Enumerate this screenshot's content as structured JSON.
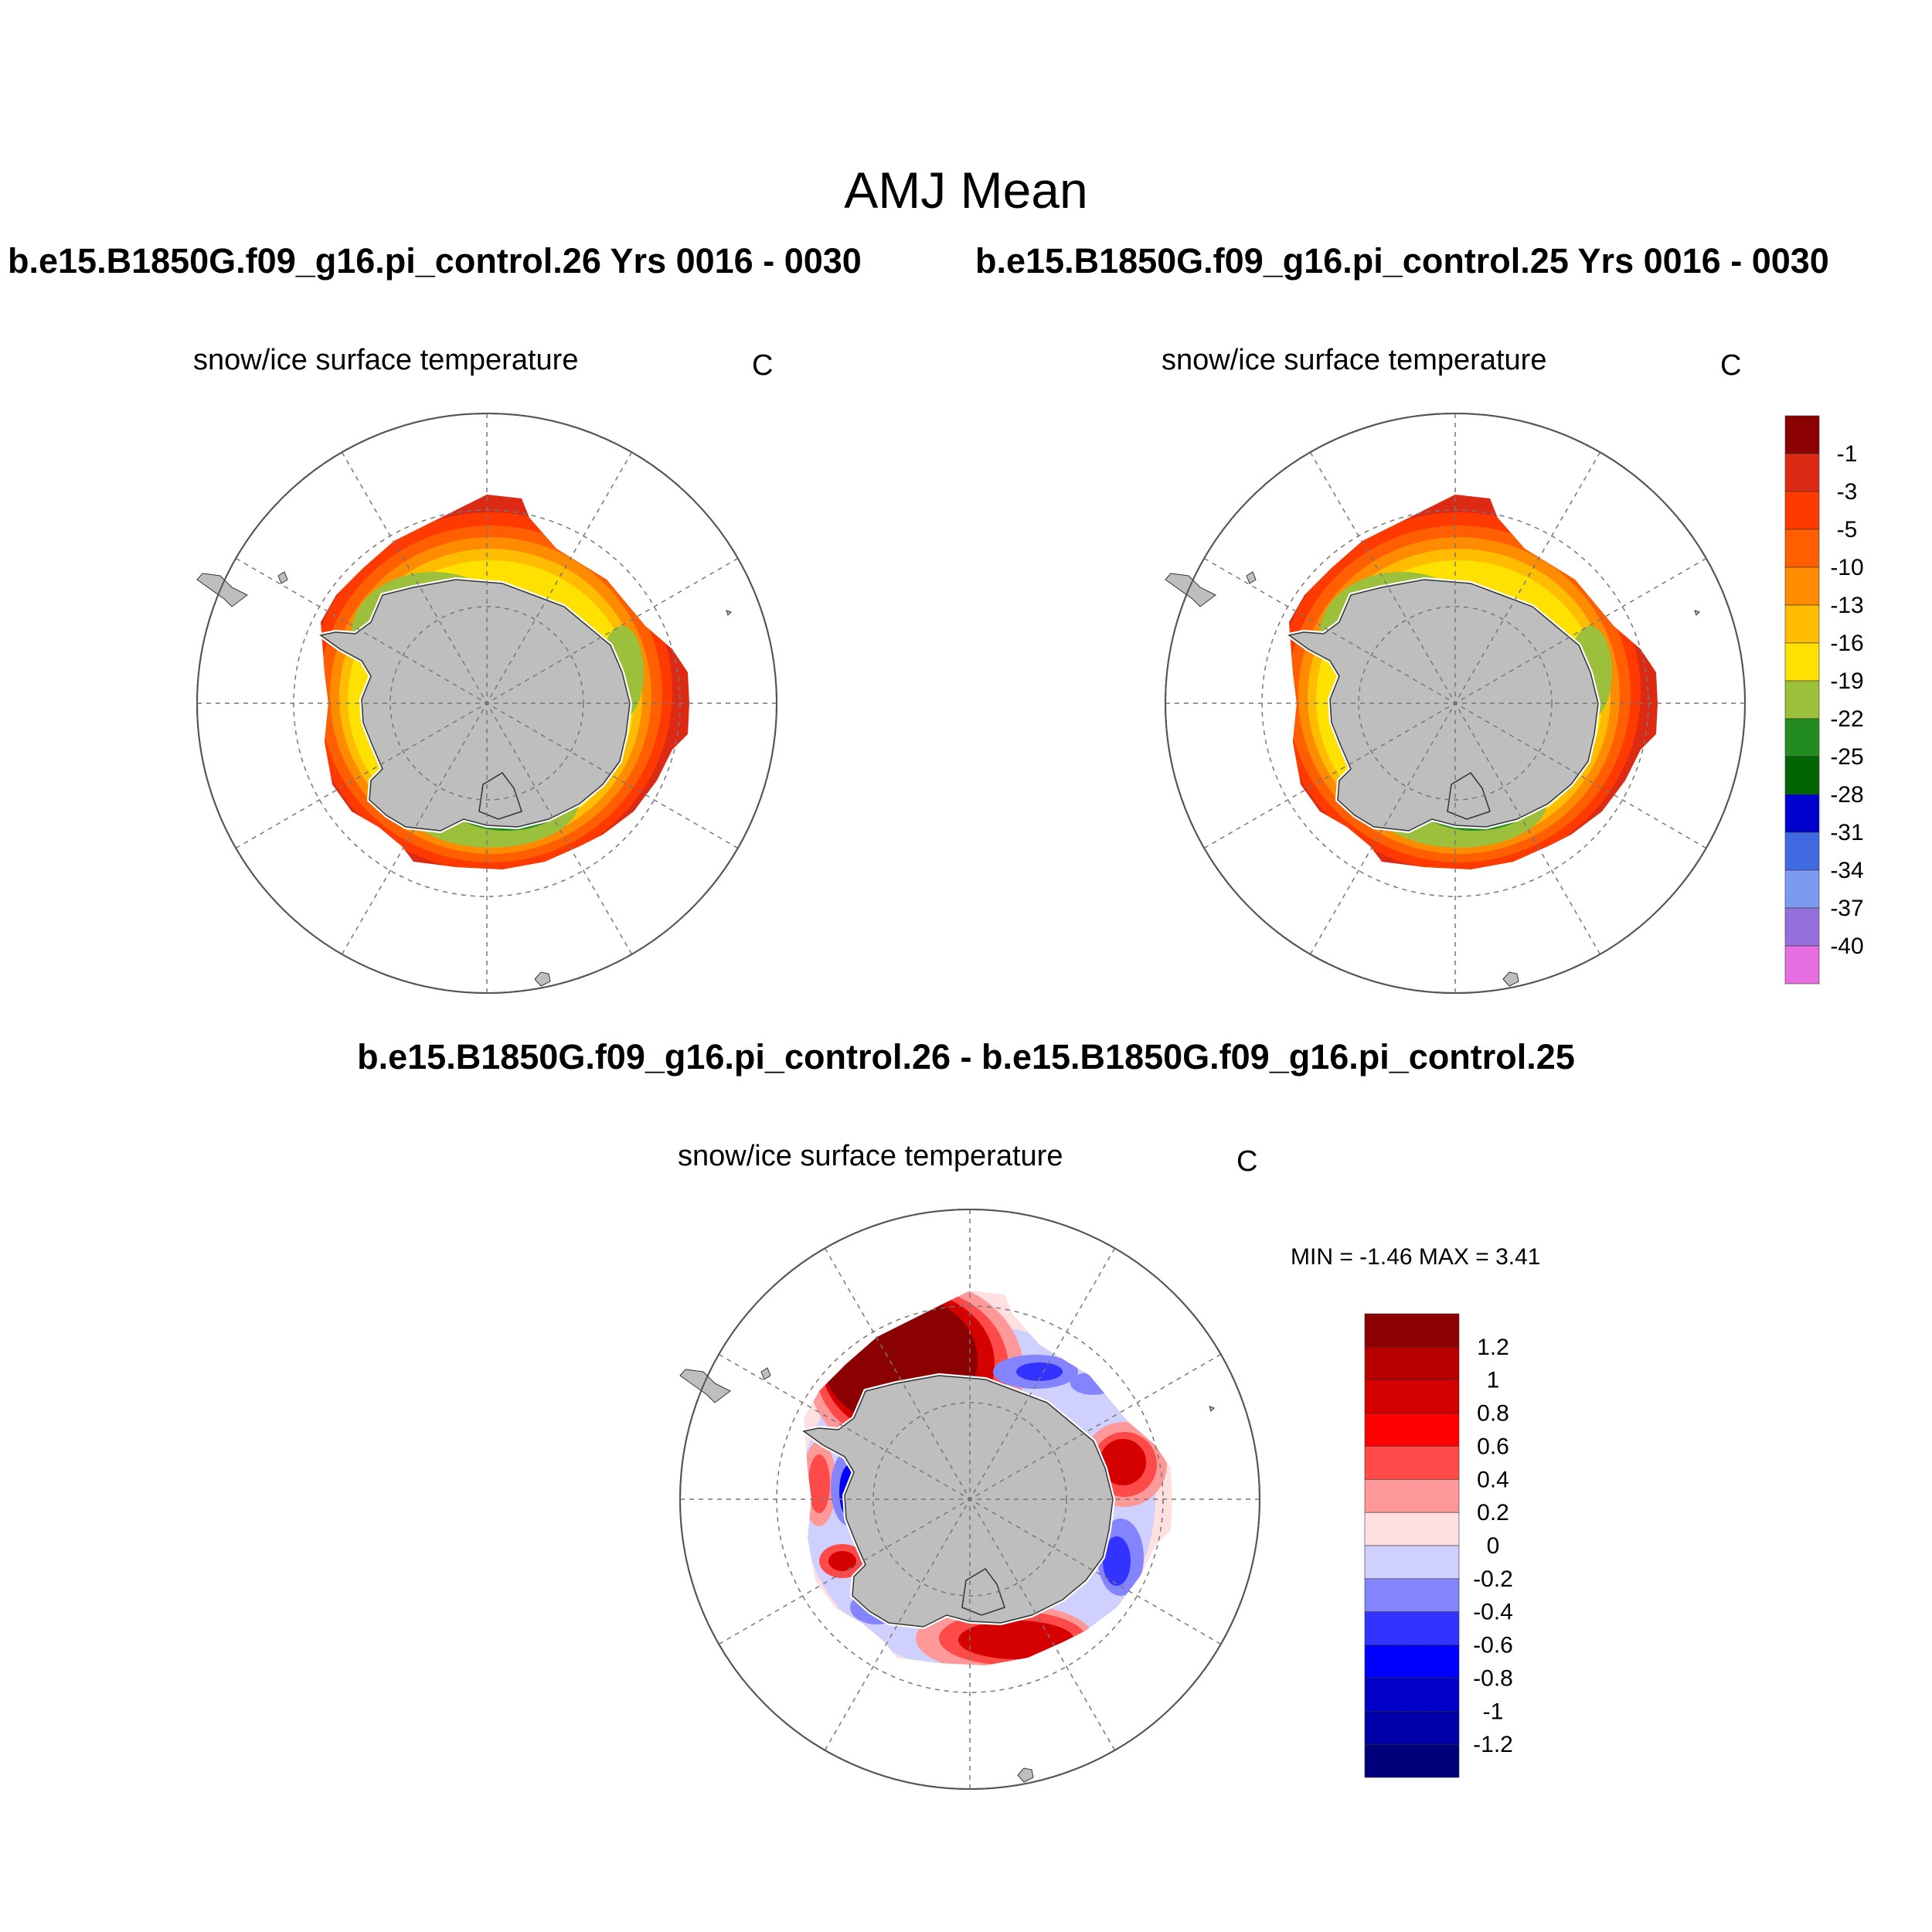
{
  "title": "AMJ Mean",
  "panels": {
    "case1": {
      "title": "b.e15.B1850G.f09_g16.pi_control.26  Yrs 0016 - 0030",
      "variable": "snow/ice surface temperature",
      "units": "C"
    },
    "case2": {
      "title": "b.e15.B1850G.f09_g16.pi_control.25  Yrs 0016 - 0030",
      "variable": "snow/ice surface temperature",
      "units": "C"
    },
    "diff": {
      "title": "b.e15.B1850G.f09_g16.pi_control.26 - b.e15.B1850G.f09_g16.pi_control.25",
      "variable": "snow/ice surface temperature",
      "units": "C",
      "minmax": "MIN =  -1.46 MAX =   3.41"
    }
  },
  "chart_data": [
    {
      "type": "heatmap",
      "map": "Southern Hemisphere polar stereographic",
      "variable": "snow/ice surface temperature",
      "units": "C",
      "colorbar": {
        "levels": [
          "-1",
          "-3",
          "-5",
          "-10",
          "-13",
          "-16",
          "-19",
          "-22",
          "-25",
          "-28",
          "-31",
          "-34",
          "-37",
          "-40"
        ],
        "colors": [
          "#8b0000",
          "#dd2a14",
          "#ff3a00",
          "#ff5f00",
          "#ff8c00",
          "#ffbc00",
          "#ffe100",
          "#9dc03c",
          "#228b22",
          "#006400",
          "#0000cd",
          "#4169e1",
          "#7b9af0",
          "#9370db",
          "#e76ee0"
        ]
      }
    },
    {
      "type": "heatmap",
      "map": "Southern Hemisphere polar stereographic",
      "variable": "snow/ice surface temperature (difference)",
      "units": "C",
      "min": -1.46,
      "max": 3.41,
      "colorbar": {
        "levels": [
          "1.2",
          "1",
          "0.8",
          "0.6",
          "0.4",
          "0.2",
          "0",
          "-0.2",
          "-0.4",
          "-0.6",
          "-0.8",
          "-1",
          "-1.2"
        ],
        "colors": [
          "#8b0000",
          "#b80000",
          "#d50000",
          "#ff0000",
          "#ff4a4a",
          "#ff9898",
          "#ffe0e0",
          "#d0d0ff",
          "#8484ff",
          "#3333ff",
          "#0000ff",
          "#0000c8",
          "#0000a8",
          "#00007a"
        ]
      }
    }
  ],
  "colors": {
    "land": "#bebebe",
    "grid": "#777777"
  }
}
